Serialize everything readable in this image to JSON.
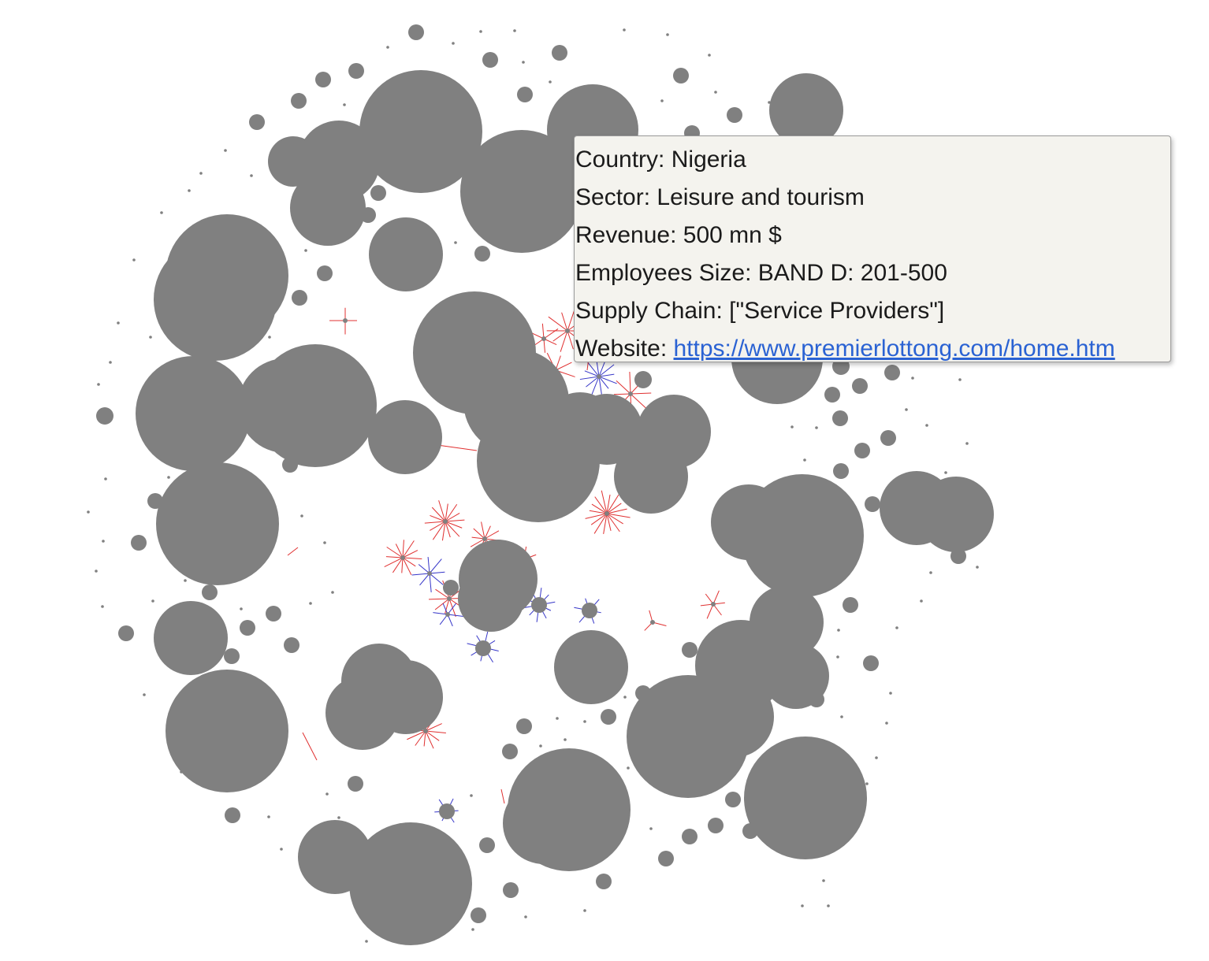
{
  "tooltip": {
    "country_label": "Country:",
    "country": "Nigeria",
    "sector_label": "Sector:",
    "sector": "Leisure and tourism",
    "revenue_label": "Revenue:",
    "revenue": "500 mn $",
    "employees_label": "Employees Size:",
    "employees": "BAND D: 201-500",
    "supply_chain_label": "Supply Chain:",
    "supply_chain": "[\"Service Providers\"]",
    "website_label": "Website:",
    "website": "https://www.premierlottong.com/home.htm"
  },
  "colors": {
    "node": "#808080",
    "edge_red": "#e03030",
    "edge_blue": "#3535c8",
    "link": "#2a62d3",
    "tooltip_bg": "#f4f3ee"
  }
}
